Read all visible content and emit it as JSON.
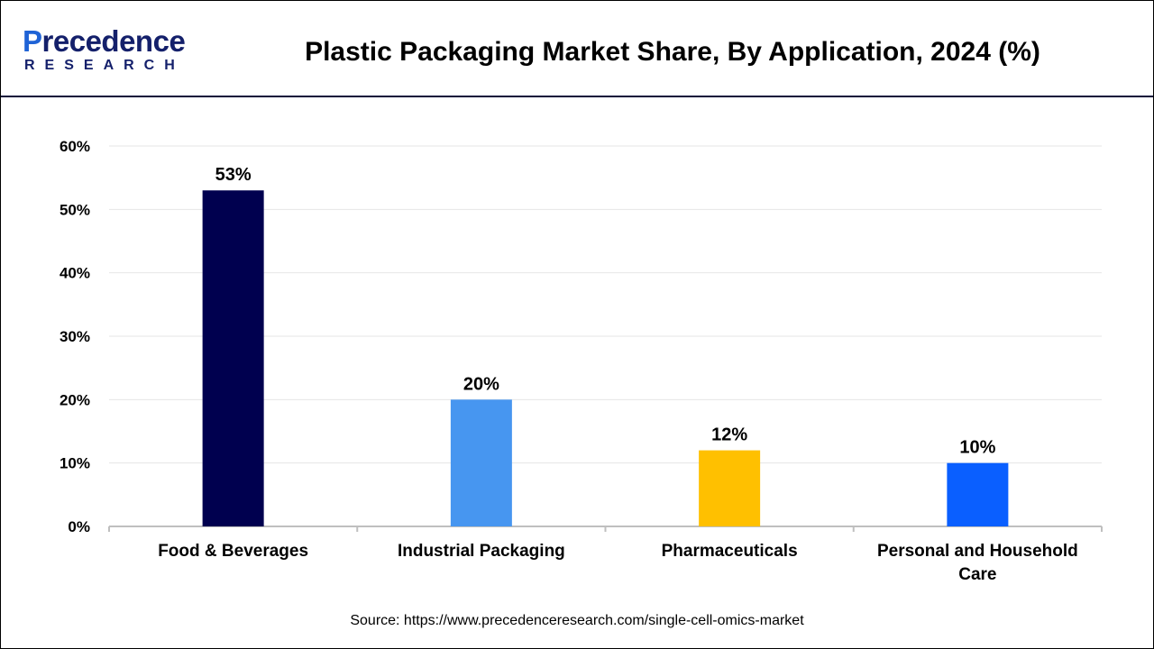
{
  "header": {
    "title": "Plastic Packaging Market Share, By Application, 2024 (%)",
    "logo_text": "Precedence",
    "logo_sub": "RESEARCH"
  },
  "chart_data": {
    "type": "bar",
    "title": "Plastic Packaging Market Share, By Application, 2024 (%)",
    "categories": [
      "Food & Beverages",
      "Industrial Packaging",
      "Pharmaceuticals",
      "Personal and Household Care"
    ],
    "values": [
      53,
      20,
      12,
      10
    ],
    "data_labels": [
      "53%",
      "20%",
      "12%",
      "10%"
    ],
    "colors": [
      "#00004f",
      "#4796f0",
      "#ffc000",
      "#0a5fff"
    ],
    "ylim": [
      0,
      60
    ],
    "yticks": [
      "0%",
      "10%",
      "20%",
      "30%",
      "40%",
      "50%",
      "60%"
    ],
    "grid": true,
    "xlabel": "",
    "ylabel": ""
  },
  "footer": {
    "source": "Source: https://www.precedenceresearch.com/single-cell-omics-market"
  }
}
